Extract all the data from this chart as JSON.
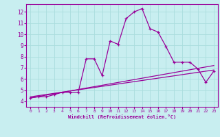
{
  "background_color": "#c8eef0",
  "grid_color": "#aadddd",
  "line_color": "#990099",
  "xlabel": "Windchill (Refroidissement éolien,°C)",
  "xlim": [
    -0.5,
    23.5
  ],
  "ylim": [
    3.5,
    12.7
  ],
  "yticks": [
    4,
    5,
    6,
    7,
    8,
    9,
    10,
    11,
    12
  ],
  "xticks": [
    0,
    1,
    2,
    3,
    4,
    5,
    6,
    7,
    8,
    9,
    10,
    11,
    12,
    13,
    14,
    15,
    16,
    17,
    18,
    19,
    20,
    21,
    22,
    23
  ],
  "main_x": [
    0,
    1,
    2,
    3,
    4,
    5,
    6,
    7,
    8,
    9,
    10,
    11,
    12,
    13,
    14,
    15,
    16,
    17,
    18,
    19,
    20,
    21,
    22,
    23
  ],
  "main_y": [
    4.3,
    4.4,
    4.4,
    4.6,
    4.8,
    4.8,
    4.8,
    7.8,
    7.8,
    6.3,
    9.4,
    9.1,
    11.4,
    12.0,
    12.3,
    10.5,
    10.2,
    8.9,
    7.5,
    7.5,
    7.5,
    6.9,
    5.7,
    6.7
  ],
  "trend1_x": [
    0,
    23
  ],
  "trend1_y": [
    4.3,
    7.2
  ],
  "trend2_x": [
    0,
    23
  ],
  "trend2_y": [
    4.4,
    6.8
  ]
}
